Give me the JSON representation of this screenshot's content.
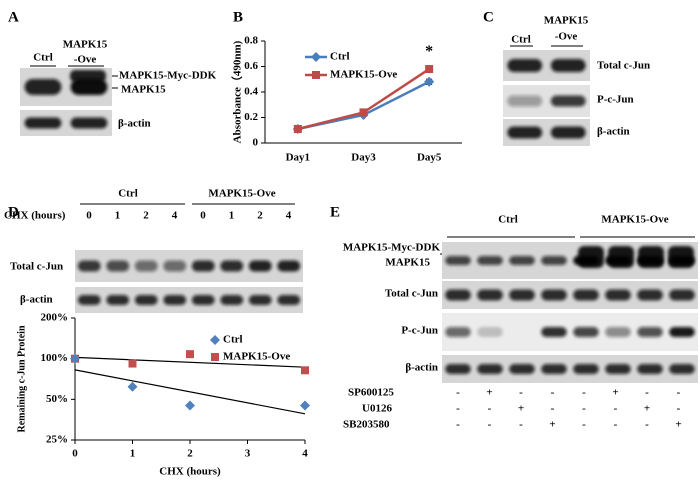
{
  "panels": {
    "A": {
      "letter": "A",
      "lanes": [
        "Ctrl",
        "MAPK15",
        "-Ove"
      ],
      "blots": [
        "MAPK15-Myc-DDK",
        "MAPK15",
        "β-actin"
      ]
    },
    "B": {
      "letter": "B"
    },
    "C": {
      "letter": "C",
      "lanes": [
        "Ctrl",
        "MAPK15",
        "-Ove"
      ],
      "blots": [
        "Total c-Jun",
        "P-c-Jun",
        "β-actin"
      ]
    },
    "D": {
      "letter": "D",
      "groups": [
        "Ctrl",
        "MAPK15-Ove"
      ],
      "treatment": "CHX (hours)",
      "lanes": [
        "0",
        "1",
        "2",
        "4",
        "0",
        "1",
        "2",
        "4"
      ],
      "blots": [
        "Total c-Jun",
        "β-actin"
      ]
    },
    "E": {
      "letter": "E",
      "groups": [
        "Ctrl",
        "MAPK15-Ove"
      ],
      "blots": [
        "MAPK15-Myc-DDK",
        "MAPK15",
        "Total c-Jun",
        "P-c-Jun",
        "β-actin"
      ],
      "treatments": [
        {
          "name": "SP600125",
          "signs": [
            "-",
            "+",
            "-",
            "-",
            "-",
            "+",
            "-",
            "-"
          ]
        },
        {
          "name": "U0126",
          "signs": [
            "-",
            "-",
            "+",
            "-",
            "-",
            "-",
            "+",
            "-"
          ]
        },
        {
          "name": "SB203580",
          "signs": [
            "-",
            "-",
            "-",
            "+",
            "-",
            "-",
            "-",
            "+"
          ]
        }
      ]
    }
  },
  "chart_data": [
    {
      "type": "line",
      "ylabel": "Absorbance（490nm)",
      "categories": [
        "Day1",
        "Day3",
        "Day5"
      ],
      "series": [
        {
          "name": "Ctrl",
          "color": "#4a7ebb",
          "marker": "diamond",
          "values": [
            0.11,
            0.22,
            0.48
          ],
          "errors": [
            0.01,
            0.01,
            0.02
          ]
        },
        {
          "name": "MAPK15-Ove",
          "color": "#be4b48",
          "marker": "square",
          "values": [
            0.11,
            0.24,
            0.58
          ],
          "errors": [
            0.01,
            0.01,
            0.02
          ]
        }
      ],
      "ylim": [
        0,
        0.8
      ],
      "yticks": [
        0,
        0.2,
        0.4,
        0.6,
        0.8
      ],
      "annotation": "*",
      "legend": "upper left"
    },
    {
      "type": "scatter",
      "xlabel": "CHX (hours)",
      "ylabel": "Remaining c-Jun Protein",
      "series": [
        {
          "name": "Ctrl",
          "color": "#4f81bd",
          "marker": "diamond",
          "x": [
            0,
            1,
            2,
            4
          ],
          "values": [
            100,
            62,
            45,
            45
          ]
        },
        {
          "name": "MAPK15-Ove",
          "color": "#c0504d",
          "marker": "square",
          "x": [
            0,
            1,
            2,
            4
          ],
          "values": [
            100,
            92,
            108,
            82
          ]
        }
      ],
      "xlim": [
        0,
        4
      ],
      "xticks": [
        0,
        1,
        2,
        3,
        4
      ],
      "ylim": [
        25,
        200
      ],
      "log_y": true,
      "yticks": [
        {
          "value": 25,
          "label": "25%"
        },
        {
          "value": 50,
          "label": "50%"
        },
        {
          "value": 100,
          "label": "100%"
        },
        {
          "value": 200,
          "label": "200%"
        }
      ],
      "trendline": "exponential",
      "legend": "upper right"
    }
  ]
}
